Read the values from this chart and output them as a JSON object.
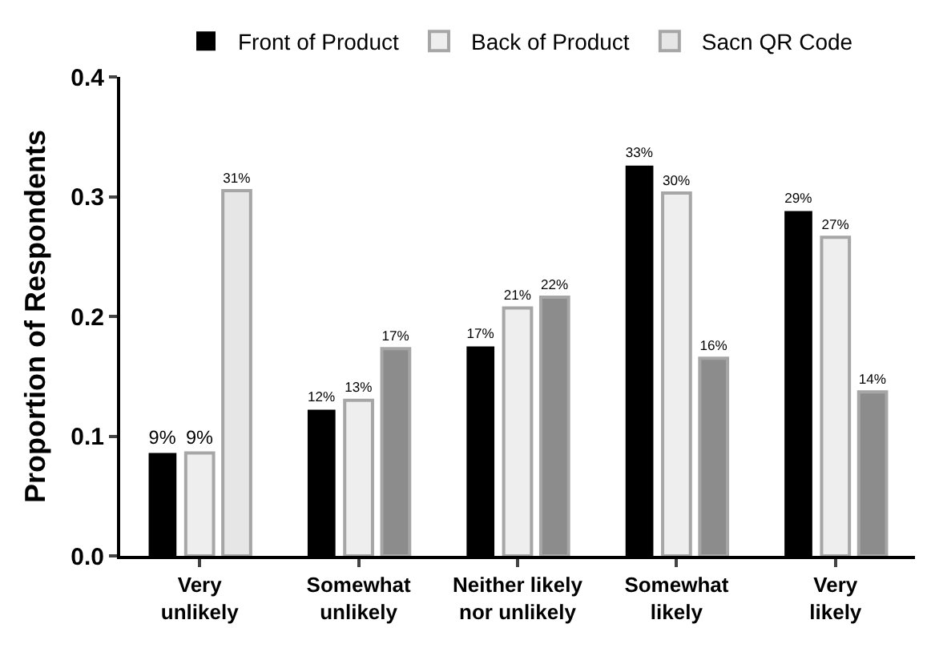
{
  "chart_data": {
    "type": "bar",
    "ylabel": "Proportion of Respondents",
    "categories": [
      "Very\nunlikely",
      "Somewhat\nunlikely",
      "Neither likely\nnor unlikely",
      "Somewhat\nlikely",
      "Very\nlikely"
    ],
    "series": [
      {
        "name": "Front of Product",
        "color": "#000000",
        "values": [
          0.086,
          0.122,
          0.175,
          0.326,
          0.288
        ],
        "value_labels": [
          "9%",
          "12%",
          "17%",
          "33%",
          "29%"
        ]
      },
      {
        "name": "Back of Product",
        "color": "#eeeeee",
        "values": [
          0.086,
          0.13,
          0.207,
          0.303,
          0.266
        ],
        "value_labels": [
          "9%",
          "13%",
          "21%",
          "30%",
          "27%"
        ]
      },
      {
        "name": "Sacn QR Code",
        "color": "#8c8c8c",
        "colors": [
          "#e6e6e6",
          "#8c8c8c",
          "#8c8c8c",
          "#8c8c8c",
          "#8c8c8c"
        ],
        "values": [
          0.305,
          0.173,
          0.216,
          0.165,
          0.137
        ],
        "value_labels": [
          "31%",
          "17%",
          "22%",
          "16%",
          "14%"
        ]
      }
    ],
    "ylim": [
      0,
      0.4
    ],
    "yticks": [
      {
        "value": 0,
        "label": "0.0"
      },
      0.1,
      0.2,
      0.3,
      0.4
    ],
    "grid": false,
    "legend": "top"
  }
}
